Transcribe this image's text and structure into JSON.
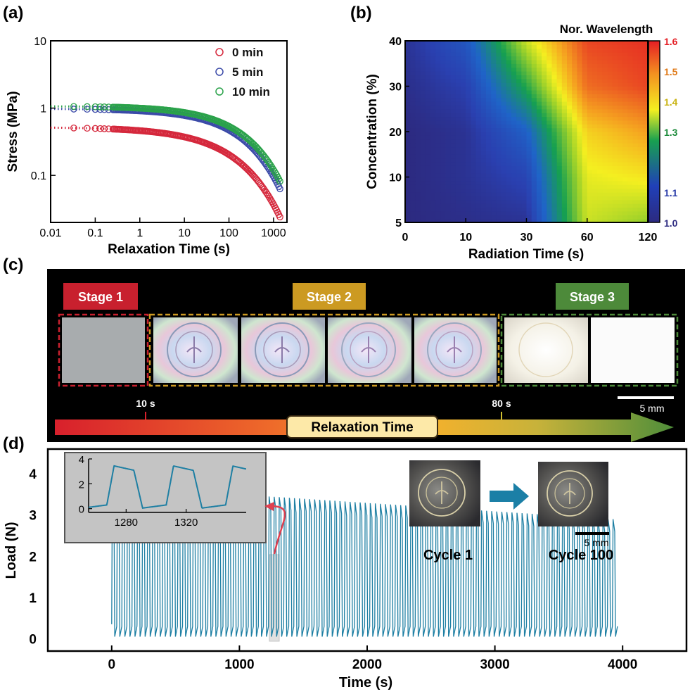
{
  "panel_labels": {
    "a": "(a)",
    "b": "(b)",
    "c": "(c)",
    "d": "(d)"
  },
  "colors": {
    "red": "#d5283c",
    "blue": "#3b4aa8",
    "green": "#2aa24a",
    "teal": "#1e7fa3",
    "stage1": "#c8202e",
    "stage2": "#cc9a22",
    "stage3": "#4d8a3a"
  },
  "chart_data": [
    {
      "id": "a",
      "type": "scatter",
      "xlabel": "Relaxation Time (s)",
      "ylabel": "Stress (MPa)",
      "xscale": "log",
      "yscale": "log",
      "xlim": [
        0.01,
        2000
      ],
      "ylim": [
        0.02,
        10
      ],
      "x_ticks": [
        0.01,
        0.1,
        1,
        10,
        100,
        1000
      ],
      "x_tick_labels": [
        "0.01",
        "0.1",
        "1",
        "10",
        "100",
        "1000"
      ],
      "y_ticks": [
        0.1,
        1,
        10
      ],
      "y_tick_labels": [
        "0.1",
        "1",
        "10"
      ],
      "legend_position": "top-right",
      "fit_lines": "dotted",
      "series": [
        {
          "name": "0 min",
          "color": "#d5283c",
          "s0": 0.52,
          "tau": 115,
          "beta": 0.45
        },
        {
          "name": "5 min",
          "color": "#3b4aa8",
          "s0": 0.98,
          "tau": 185,
          "beta": 0.5
        },
        {
          "name": "10 min",
          "color": "#2aa24a",
          "s0": 1.07,
          "tau": 210,
          "beta": 0.5
        }
      ]
    },
    {
      "id": "b",
      "type": "heatmap",
      "xlabel": "Radiation Time (s)",
      "ylabel": "Concentration (%)",
      "x_categories": [
        "0",
        "10",
        "30",
        "60",
        "120"
      ],
      "y_categories": [
        "5",
        "10",
        "20",
        "30",
        "40"
      ],
      "colorbar_title": "Nor. Wavelength",
      "colorbar_range": [
        1.0,
        1.6
      ],
      "colorbar_ticks": [
        "1.0",
        "1.1",
        "1.3",
        "1.4",
        "1.5",
        "1.6"
      ],
      "values": [
        [
          1.0,
          1.01,
          1.02,
          1.36,
          1.32
        ],
        [
          1.0,
          1.02,
          1.06,
          1.38,
          1.4
        ],
        [
          1.0,
          1.02,
          1.12,
          1.42,
          1.47
        ],
        [
          1.01,
          1.05,
          1.25,
          1.52,
          1.56
        ],
        [
          1.02,
          1.1,
          1.36,
          1.56,
          1.58
        ]
      ]
    },
    {
      "id": "d",
      "type": "line",
      "xlabel": "Time (s)",
      "ylabel": "Load (N)",
      "xlim": [
        -500,
        4500
      ],
      "ylim": [
        -0.3,
        4.6
      ],
      "x_ticks": [
        "0",
        "1000",
        "2000",
        "3000",
        "4000"
      ],
      "y_ticks": [
        "0",
        "1",
        "2",
        "3",
        "4"
      ],
      "cycles": 100,
      "duration": 3960,
      "peak_start": 3.7,
      "peak_end": 2.9,
      "color": "#1e7fa3",
      "inset": {
        "xlim": [
          1255,
          1360
        ],
        "ylim": [
          -0.3,
          4
        ],
        "x_ticks": [
          "1280",
          "1320"
        ],
        "y_ticks": [
          "0",
          "2",
          "4"
        ]
      }
    }
  ],
  "panel_c": {
    "stages": [
      "Stage 1",
      "Stage 2",
      "Stage 3"
    ],
    "time_marks": [
      "10 s",
      "80 s"
    ],
    "arrow_label": "Relaxation Time",
    "scale_bar": "5 mm"
  },
  "panel_d_photos": {
    "cycle_labels": [
      "Cycle 1",
      "Cycle 100"
    ],
    "scale_bar": "5 mm"
  }
}
